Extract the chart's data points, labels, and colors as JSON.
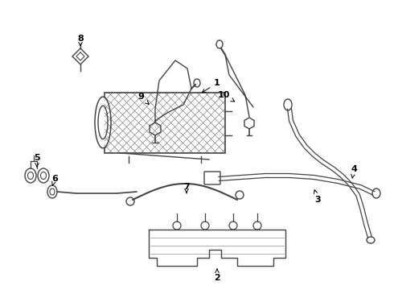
{
  "background_color": "#ffffff",
  "line_color": "#444444",
  "fig_width": 4.9,
  "fig_height": 3.6,
  "dpi": 100
}
